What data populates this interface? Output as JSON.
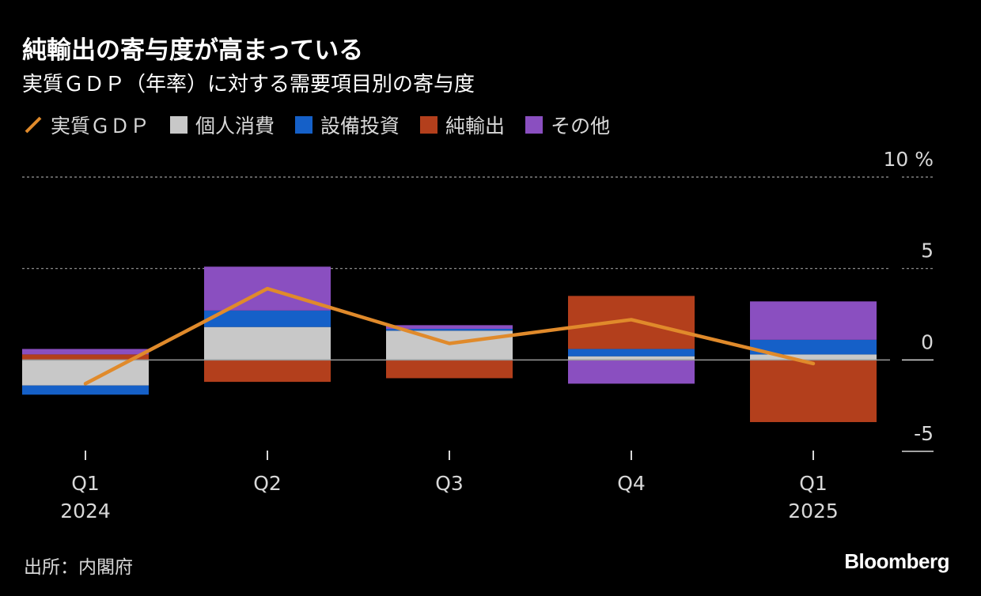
{
  "title": "純輸出の寄与度が高まっている",
  "subtitle": "実質ＧＤＰ（年率）に対する需要項目別の寄与度",
  "source": "出所：内閣府",
  "brand": "Bloomberg",
  "colors": {
    "gdp": "#e08a2b",
    "consumption": "#c8c8c8",
    "capex": "#1560c8",
    "net_exports": "#b33f1c",
    "other": "#8a4fc0"
  },
  "legend": [
    {
      "label": "実質ＧＤＰ",
      "key": "gdp",
      "kind": "line"
    },
    {
      "label": "個人消費",
      "key": "consumption",
      "kind": "box"
    },
    {
      "label": "設備投資",
      "key": "capex",
      "kind": "box"
    },
    {
      "label": "純輸出",
      "key": "net_exports",
      "kind": "box"
    },
    {
      "label": "その他",
      "key": "other",
      "kind": "box"
    }
  ],
  "chart_data": {
    "type": "bar",
    "stacked": true,
    "title": "純輸出の寄与度が高まっている",
    "subtitle": "実質ＧＤＰ（年率）に対する需要項目別の寄与度",
    "categories": [
      "Q1",
      "Q2",
      "Q3",
      "Q4",
      "Q1"
    ],
    "category_years": [
      "2024",
      "",
      "",
      "",
      "2025"
    ],
    "ylim": [
      -5,
      10
    ],
    "yticks": [
      {
        "value": 10,
        "label": "10 %"
      },
      {
        "value": 5,
        "label": "5"
      },
      {
        "value": 0,
        "label": "0"
      },
      {
        "value": -5,
        "label": "-5"
      }
    ],
    "series": [
      {
        "name": "個人消費",
        "key": "consumption",
        "values": [
          -1.4,
          1.8,
          1.6,
          0.2,
          0.3
        ]
      },
      {
        "name": "設備投資",
        "key": "capex",
        "values": [
          -0.5,
          0.9,
          0.1,
          0.4,
          0.8
        ]
      },
      {
        "name": "純輸出",
        "key": "net_exports",
        "values": [
          0.3,
          -1.2,
          -1.0,
          2.9,
          -3.4
        ]
      },
      {
        "name": "その他",
        "key": "other",
        "values": [
          0.3,
          2.4,
          0.2,
          -1.3,
          2.1
        ]
      }
    ],
    "line": {
      "name": "実質ＧＤＰ",
      "key": "gdp",
      "values": [
        -1.3,
        3.9,
        0.9,
        2.2,
        -0.2
      ]
    }
  }
}
